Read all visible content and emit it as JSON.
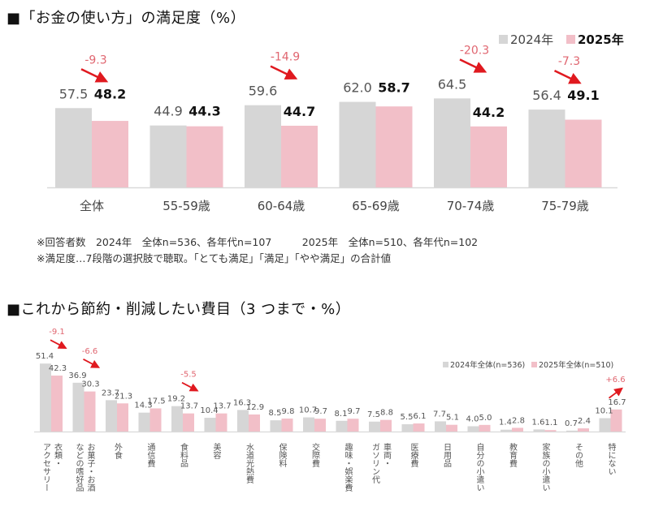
{
  "colors": {
    "y2024": "#d6d6d6",
    "y2025": "#f2bfc8",
    "arrow": "#e0191f",
    "diff_text": "#e06670",
    "axis": "#d9d9d9"
  },
  "chart_data": [
    {
      "type": "bar",
      "title": "■「お金の使い方」の満足度（%）",
      "xlabel": "",
      "ylabel": "",
      "ylim": [
        0,
        70
      ],
      "grid": false,
      "legend": {
        "position": "top-right",
        "entries": [
          "2024年",
          "2025年"
        ]
      },
      "categories": [
        "全体",
        "55-59歳",
        "60-64歳",
        "65-69歳",
        "70-74歳",
        "75-79歳"
      ],
      "series": [
        {
          "name": "2024年",
          "values": [
            57.5,
            44.9,
            59.6,
            62.0,
            64.5,
            56.4
          ]
        },
        {
          "name": "2025年",
          "values": [
            48.2,
            44.3,
            44.7,
            58.7,
            44.2,
            49.1
          ]
        }
      ],
      "annotations": [
        {
          "category": "全体",
          "text": "-9.3",
          "direction": "down"
        },
        {
          "category": "60-64歳",
          "text": "-14.9",
          "direction": "down"
        },
        {
          "category": "70-74歳",
          "text": "-20.3",
          "direction": "down"
        },
        {
          "category": "75-79歳",
          "text": "-7.3",
          "direction": "down"
        }
      ],
      "notes": [
        "※回答者数　2024年　全体n=536、各年代n=107　　　2025年　全体n=510、各年代n=102",
        "※満足度…7段階の選択肢で聴取。「とても満足」「満足」「やや満足」の合計値"
      ]
    },
    {
      "type": "bar",
      "title": "■これから節約・削減したい費目（3 つまで・%）",
      "xlabel": "",
      "ylabel": "",
      "ylim": [
        0,
        60
      ],
      "grid": false,
      "legend": {
        "position": "top-right",
        "entries": [
          "2024年全体(n=536)",
          "2025年全体(n=510)"
        ]
      },
      "categories": [
        "衣類・アクセサリー",
        "お菓子・お酒などの嗜好品",
        "外食",
        "通信費",
        "食料品",
        "美容",
        "水道光熱費",
        "保険料",
        "交際費",
        "趣味・娯楽費",
        "車両・ガソリン代",
        "医療費",
        "日用品",
        "自分の小遣い",
        "教育費",
        "家族の小遣い",
        "その他",
        "特にない"
      ],
      "category_lines": [
        [
          "衣類・",
          "アクセサリー"
        ],
        [
          "お菓子・お酒",
          "などの嗜好品"
        ],
        [
          "外食"
        ],
        [
          "通信費"
        ],
        [
          "食料品"
        ],
        [
          "美容"
        ],
        [
          "水道光熱費"
        ],
        [
          "保険料"
        ],
        [
          "交際費"
        ],
        [
          "趣味・娯楽費"
        ],
        [
          "車両・",
          "ガソリン代"
        ],
        [
          "医療費"
        ],
        [
          "日用品"
        ],
        [
          "自分の小遣い"
        ],
        [
          "教育費"
        ],
        [
          "家族の小遣い"
        ],
        [
          "その他"
        ],
        [
          "特にない"
        ]
      ],
      "series": [
        {
          "name": "2024年全体(n=536)",
          "values": [
            51.4,
            36.9,
            23.7,
            14.3,
            19.2,
            10.4,
            16.3,
            8.5,
            10.7,
            8.1,
            7.5,
            5.5,
            7.7,
            4.0,
            1.4,
            1.6,
            0.7,
            10.1
          ]
        },
        {
          "name": "2025年全体(n=510)",
          "values": [
            42.3,
            30.3,
            21.3,
            17.5,
            13.7,
            13.7,
            12.9,
            9.8,
            9.7,
            9.7,
            8.8,
            6.1,
            5.1,
            5.0,
            2.8,
            1.1,
            2.4,
            16.7
          ]
        }
      ],
      "annotations": [
        {
          "category": "衣類・アクセサリー",
          "text": "-9.1",
          "direction": "down"
        },
        {
          "category": "お菓子・お酒などの嗜好品",
          "text": "-6.6",
          "direction": "down"
        },
        {
          "category": "食料品",
          "text": "-5.5",
          "direction": "down"
        },
        {
          "category": "特にない",
          "text": "+6.6",
          "direction": "up"
        }
      ]
    }
  ]
}
